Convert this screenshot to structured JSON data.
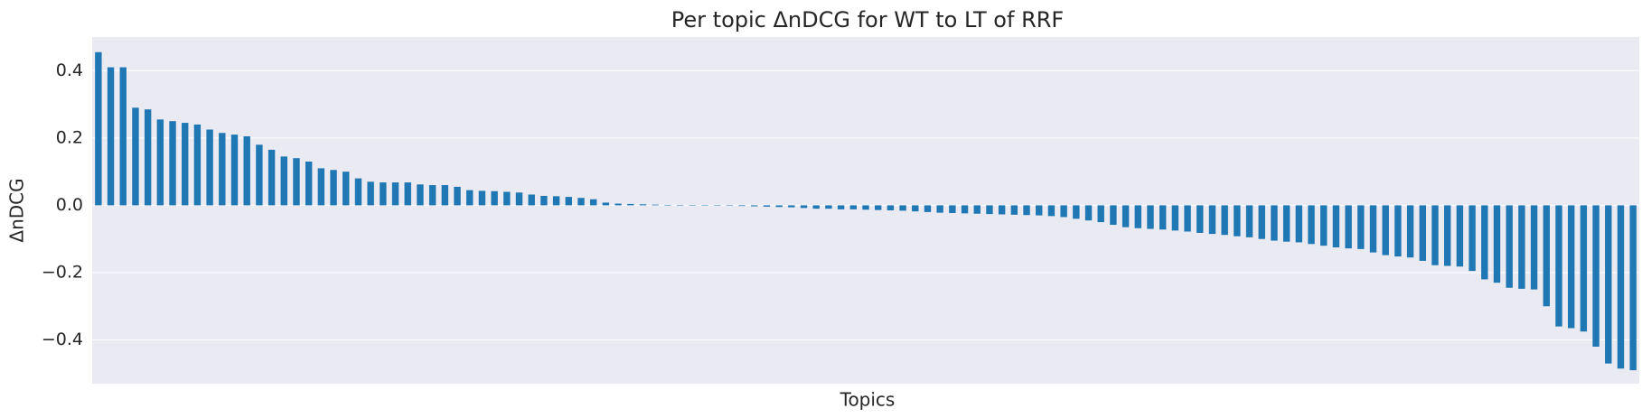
{
  "chart_data": {
    "type": "bar",
    "title": "Per topic ΔnDCG for WT to LT of RRF",
    "x_label": "Topics",
    "y_label": "ΔnDCG",
    "color": "#1f77b4",
    "grid": true,
    "background": "#eaeaf2",
    "values": [
      0.455,
      0.41,
      0.41,
      0.29,
      0.285,
      0.255,
      0.25,
      0.245,
      0.24,
      0.225,
      0.215,
      0.21,
      0.205,
      0.18,
      0.165,
      0.145,
      0.14,
      0.13,
      0.11,
      0.105,
      0.1,
      0.08,
      0.07,
      0.068,
      0.068,
      0.068,
      0.062,
      0.06,
      0.06,
      0.055,
      0.045,
      0.043,
      0.042,
      0.04,
      0.038,
      0.032,
      0.028,
      0.027,
      0.025,
      0.022,
      0.018,
      0.008,
      0.005,
      0.004,
      0.003,
      0.002,
      0.001,
      0.001,
      0,
      0,
      -0.001,
      -0.001,
      -0.002,
      -0.003,
      -0.004,
      -0.005,
      -0.006,
      -0.008,
      -0.01,
      -0.01,
      -0.012,
      -0.012,
      -0.013,
      -0.014,
      -0.015,
      -0.016,
      -0.018,
      -0.02,
      -0.022,
      -0.023,
      -0.024,
      -0.025,
      -0.026,
      -0.027,
      -0.028,
      -0.029,
      -0.03,
      -0.032,
      -0.035,
      -0.04,
      -0.045,
      -0.05,
      -0.058,
      -0.065,
      -0.068,
      -0.07,
      -0.072,
      -0.075,
      -0.078,
      -0.082,
      -0.085,
      -0.088,
      -0.092,
      -0.095,
      -0.1,
      -0.105,
      -0.108,
      -0.11,
      -0.115,
      -0.12,
      -0.125,
      -0.128,
      -0.13,
      -0.14,
      -0.148,
      -0.152,
      -0.155,
      -0.165,
      -0.178,
      -0.18,
      -0.182,
      -0.195,
      -0.22,
      -0.23,
      -0.245,
      -0.248,
      -0.25,
      -0.3,
      -0.36,
      -0.365,
      -0.375,
      -0.42,
      -0.47,
      -0.485,
      -0.49
    ],
    "ylim": [
      -0.53,
      0.5
    ],
    "yticks": [
      {
        "value": -0.4,
        "label": "−0.4"
      },
      {
        "value": -0.2,
        "label": "−0.2"
      },
      {
        "value": 0,
        "label": "0.0"
      },
      0.2,
      0.4
    ]
  }
}
